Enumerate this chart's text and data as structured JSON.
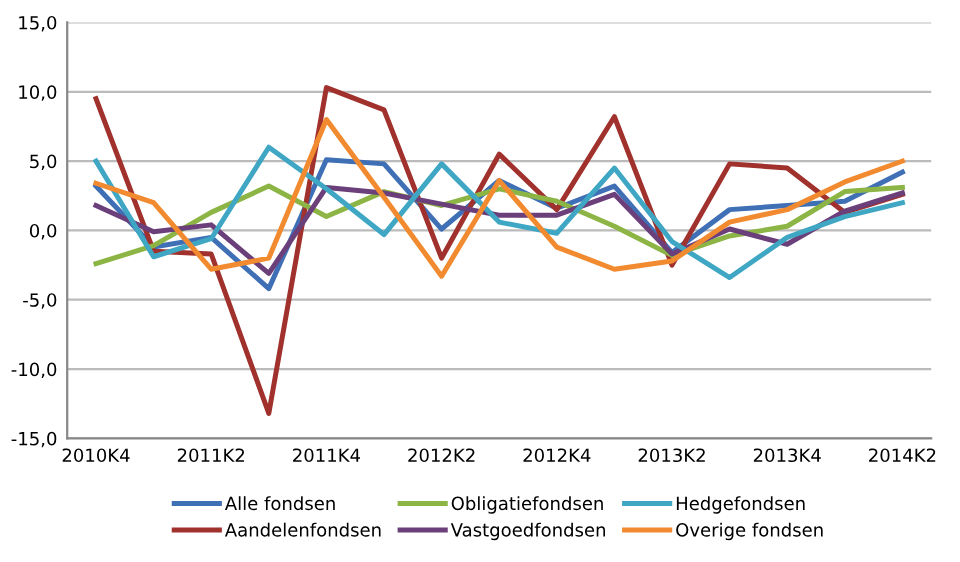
{
  "chart_data": {
    "type": "line",
    "categories": [
      "2010K4",
      null,
      "2011K2",
      null,
      "2011K4",
      null,
      "2012K2",
      null,
      "2012K4",
      null,
      "2013K2",
      null,
      "2013K4",
      null,
      "2014K2"
    ],
    "series": [
      {
        "name": "Alle fondsen",
        "color": "#3f6fb5",
        "values": [
          3.2,
          -1.2,
          -0.5,
          -4.2,
          5.1,
          4.8,
          0.1,
          3.6,
          1.6,
          3.2,
          -1.6,
          1.5,
          1.8,
          2.1,
          4.2
        ]
      },
      {
        "name": "Aandelenfondsen",
        "color": "#a0312c",
        "values": [
          9.5,
          -1.5,
          -1.7,
          -13.2,
          10.3,
          8.7,
          -2.0,
          5.5,
          1.5,
          8.2,
          -2.5,
          4.8,
          4.5,
          1.3,
          2.6
        ]
      },
      {
        "name": "Obligatiefondsen",
        "color": "#8cb545",
        "values": [
          -2.4,
          -1.1,
          1.3,
          3.2,
          1.0,
          2.8,
          1.8,
          3.0,
          2.1,
          0.3,
          -1.8,
          -0.4,
          0.3,
          2.8,
          3.1
        ]
      },
      {
        "name": "Vastgoedfondsen",
        "color": "#6b3f7a",
        "values": [
          1.8,
          -0.1,
          0.4,
          -3.1,
          3.1,
          2.7,
          1.9,
          1.1,
          1.1,
          2.6,
          -1.7,
          0.1,
          -1.0,
          1.4,
          2.7
        ]
      },
      {
        "name": "Hedgefondsen",
        "color": "#3fa6c4",
        "values": [
          5.0,
          -1.9,
          -0.6,
          6.0,
          3.0,
          -0.3,
          4.8,
          0.6,
          -0.2,
          4.5,
          -0.8,
          -3.4,
          -0.5,
          1.0,
          2.0
        ]
      },
      {
        "name": "Overige fondsen",
        "color": "#f28a30",
        "values": [
          3.4,
          2.0,
          -2.8,
          -2.0,
          8.0,
          2.4,
          -3.3,
          3.6,
          -1.2,
          -2.8,
          -2.2,
          0.6,
          1.5,
          3.5,
          5.0
        ]
      }
    ],
    "ylim": [
      -15,
      15
    ],
    "yticks": [
      {
        "value": -15,
        "label": "-15,0"
      },
      {
        "value": -10,
        "label": "-10,0"
      },
      {
        "value": -5,
        "label": "-5,0"
      },
      {
        "value": 0,
        "label": "0,0"
      },
      {
        "value": 5,
        "label": "5,0"
      },
      {
        "value": 10,
        "label": "10,0"
      },
      {
        "value": 15,
        "label": "15,0"
      }
    ],
    "grid": "y",
    "legend": "bottom",
    "marker": "none",
    "line_style": "solid"
  }
}
